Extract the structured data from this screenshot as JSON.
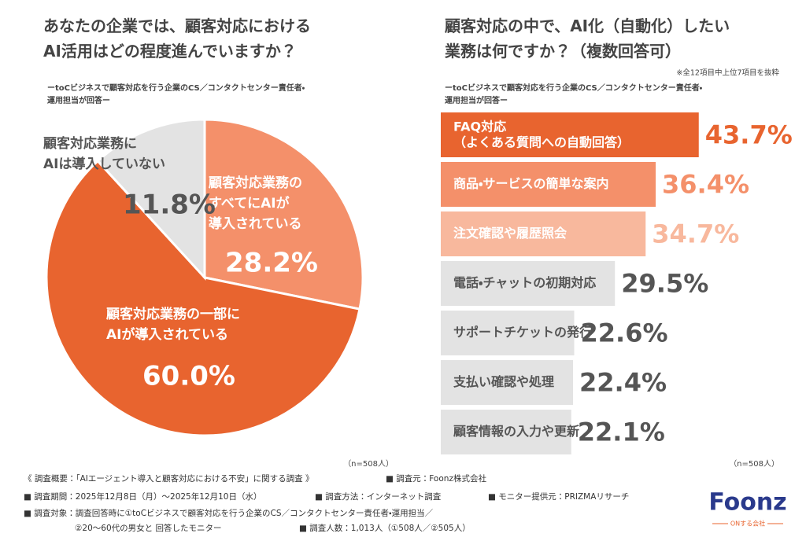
{
  "chart_data": [
    {
      "type": "pie",
      "title": "あなたの企業では、顧客対応における\nAI活用はどの程度進んでいますか？",
      "subtitle": "ーtoCビジネスで顧客対応を行う企業のCS／コンタクトセンター責任者・\n運用担当が回答ー",
      "categories": [
        "顧客対応業務の\nすべてにAIが\n導入されている",
        "顧客対応業務の一部に\nAIが導入されている",
        "顧客対応業務に\nAIは導入していない"
      ],
      "values": [
        28.2,
        60.0,
        11.8
      ],
      "value_labels": [
        "28.2%",
        "60.0%",
        "11.8%"
      ],
      "colors": [
        "#f4906a",
        "#e8642f",
        "#e3e3e3"
      ],
      "label_colors": [
        "#ffffff",
        "#ffffff",
        "#555555"
      ],
      "note": "（n=508人）"
    },
    {
      "type": "hbar",
      "title": "顧客対応の中で、AI化（自動化）したい\n業務は何ですか？（複数回答可）",
      "annotation": "※全12項目中上位7項目を抜粋",
      "subtitle": "ーtoCビジネスで顧客対応を行う企業のCS／コンタクトセンター責任者・\n運用担当が回答ー",
      "categories": [
        "FAQ対応\n（よくある質問への自動回答）",
        "商品・サービスの簡単な案内",
        "注文確認や履歴照会",
        "電話・チャットの初期対応",
        "サポートチケットの発行",
        "支払い確認や処理",
        "顧客情報の入力や更新"
      ],
      "values": [
        43.7,
        36.4,
        34.7,
        29.5,
        22.6,
        22.4,
        22.1
      ],
      "value_labels": [
        "43.7%",
        "36.4%",
        "34.7%",
        "29.5%",
        "22.6%",
        "22.4%",
        "22.1%"
      ],
      "colors": [
        "#e8642f",
        "#f4906a",
        "#f8b89d",
        "#e3e3e3",
        "#e3e3e3",
        "#e3e3e3",
        "#e3e3e3"
      ],
      "label_colors": [
        "#e8642f",
        "#f4906a",
        "#f8b89d",
        "#555555",
        "#555555",
        "#555555",
        "#555555"
      ],
      "note": "（n=508人）"
    }
  ],
  "footer": {
    "heading": "《 調査概要：「AIエージェント導入と顧客対応における不安」に関する調査 》",
    "items": [
      "■ 調査元：Foonz株式会社",
      "■ 調査期間：2025年12月8日（月）〜2025年12月10日（水）",
      "■ 調査方法：インターネット調査",
      "■ モニター提供元：PRIZMAリサーチ",
      "■ 調査対象：調査回答時に①toCビジネスで顧客対応を行う企業のCS／コンタクトセンター責任者・運用担当／",
      "②20〜60代の男女と 回答したモニター",
      "■ 調査人数：1,013人（①508人／②505人）"
    ]
  },
  "logo": {
    "name": "Foonz",
    "tagline": "ONする会社"
  }
}
